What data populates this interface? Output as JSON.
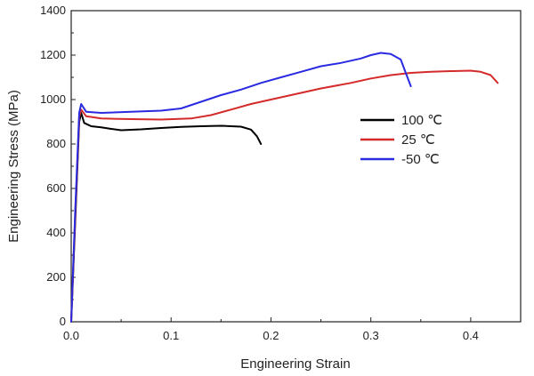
{
  "chart_data": {
    "type": "line",
    "title": "",
    "xlabel": "Engineering Strain",
    "ylabel": "Engineering Stress (MPa)",
    "xlim": [
      0.0,
      0.45
    ],
    "ylim": [
      0,
      1400
    ],
    "xticks": [
      0.0,
      0.1,
      0.2,
      0.3,
      0.4
    ],
    "xtick_labels": [
      "0.0",
      "0.1",
      "0.2",
      "0.3",
      "0.4"
    ],
    "yticks": [
      0,
      200,
      400,
      600,
      800,
      1000,
      1200,
      1400
    ],
    "ytick_labels": [
      "0",
      "200",
      "400",
      "600",
      "800",
      "1000",
      "1200",
      "1400"
    ],
    "grid": false,
    "legend_position": "center-right",
    "series": [
      {
        "name": "100 ℃",
        "color": "#000000",
        "x": [
          0.0,
          0.004,
          0.008,
          0.01,
          0.013,
          0.02,
          0.03,
          0.04,
          0.05,
          0.07,
          0.09,
          0.11,
          0.13,
          0.15,
          0.17,
          0.18,
          0.186,
          0.19
        ],
        "y": [
          0,
          450,
          900,
          940,
          895,
          880,
          875,
          868,
          862,
          866,
          872,
          877,
          880,
          882,
          878,
          865,
          835,
          800
        ]
      },
      {
        "name": "25 ℃",
        "color": "#d42a2a",
        "x": [
          0.0,
          0.004,
          0.008,
          0.01,
          0.015,
          0.03,
          0.06,
          0.09,
          0.12,
          0.14,
          0.16,
          0.18,
          0.2,
          0.22,
          0.25,
          0.28,
          0.3,
          0.32,
          0.34,
          0.36,
          0.38,
          0.4,
          0.41,
          0.42,
          0.427
        ],
        "y": [
          0,
          480,
          920,
          955,
          925,
          915,
          912,
          910,
          915,
          930,
          955,
          980,
          1000,
          1020,
          1050,
          1075,
          1095,
          1110,
          1120,
          1125,
          1128,
          1130,
          1125,
          1110,
          1075
        ]
      },
      {
        "name": "-50 ℃",
        "color": "#2a2ae0",
        "x": [
          0.0,
          0.004,
          0.008,
          0.01,
          0.015,
          0.03,
          0.06,
          0.09,
          0.11,
          0.13,
          0.15,
          0.17,
          0.19,
          0.21,
          0.23,
          0.25,
          0.27,
          0.29,
          0.3,
          0.31,
          0.32,
          0.33,
          0.335,
          0.34
        ],
        "y": [
          0,
          500,
          940,
          980,
          945,
          940,
          945,
          950,
          960,
          990,
          1020,
          1045,
          1075,
          1100,
          1125,
          1150,
          1165,
          1185,
          1200,
          1210,
          1205,
          1180,
          1120,
          1060
        ]
      }
    ]
  }
}
